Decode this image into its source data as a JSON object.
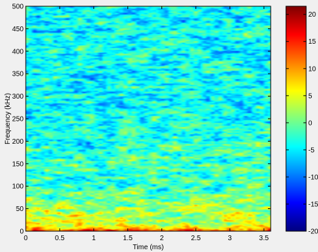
{
  "chart_data": {
    "type": "heatmap",
    "title": "",
    "xlabel": "Time (ms)",
    "ylabel": "Frequency (kHz)",
    "xlim": [
      0,
      3.6
    ],
    "ylim": [
      0,
      500
    ],
    "x_ticks": [
      0,
      0.5,
      1,
      1.5,
      2,
      2.5,
      3,
      3.5
    ],
    "x_tick_labels": [
      "0",
      "0.5",
      "1",
      "1.5",
      "2",
      "2.5",
      "3",
      "3.5"
    ],
    "y_ticks": [
      0,
      50,
      100,
      150,
      200,
      250,
      300,
      350,
      400,
      450,
      500
    ],
    "y_tick_labels": [
      "0",
      "50",
      "100",
      "150",
      "200",
      "250",
      "300",
      "350",
      "400",
      "450",
      "500"
    ],
    "colorbar": {
      "range": [
        -20,
        21.5
      ],
      "ticks": [
        -20,
        -15,
        -10,
        -5,
        0,
        5,
        10,
        15,
        20
      ],
      "tick_labels": [
        "-20",
        "-15",
        "-10",
        "-5",
        "0",
        "5",
        "10",
        "15",
        "20"
      ],
      "colormap": "jet"
    },
    "grid": false,
    "estimated_levels": {
      "frequency_kHz": [
        0,
        5,
        15,
        30,
        50,
        100,
        150,
        200,
        300,
        400,
        500
      ],
      "mean_level": [
        14,
        8,
        4,
        3,
        2,
        -2,
        -2,
        -3,
        -4,
        -4,
        -4
      ]
    }
  }
}
